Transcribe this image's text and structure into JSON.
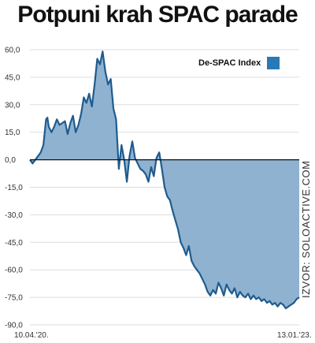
{
  "chart_data": {
    "type": "area",
    "title": "Potpuni krah SPAC parade",
    "xlabel": "",
    "ylabel": "",
    "ylim": [
      -90,
      60
    ],
    "yticks": [
      60,
      45,
      30,
      15,
      0,
      -15,
      -30,
      -45,
      -60,
      -75,
      -90
    ],
    "ytick_labels": [
      "60,0",
      "45,0",
      "30,0",
      "15,0",
      "0,0",
      "-15,0",
      "-30,0",
      "-45,0",
      "-60,0",
      "-75,0",
      "-90,0"
    ],
    "x_start_label": "10.04.'20.",
    "x_end_label": "13.01.'23.",
    "grid": "horizontal",
    "legend_position": "top-right",
    "source": "IZVOR: SOLOACTIVE.COM",
    "colors": {
      "line": "#1f5b8e",
      "fill": "#8fb2d0",
      "legend": "#2a79b6",
      "grid": "#dddddd"
    },
    "series": [
      {
        "name": "De-SPAC Index",
        "x": [
          0,
          0.01,
          0.02,
          0.03,
          0.04,
          0.05,
          0.06,
          0.065,
          0.07,
          0.08,
          0.09,
          0.1,
          0.11,
          0.12,
          0.13,
          0.14,
          0.15,
          0.16,
          0.17,
          0.18,
          0.19,
          0.2,
          0.21,
          0.22,
          0.23,
          0.24,
          0.25,
          0.26,
          0.27,
          0.28,
          0.29,
          0.3,
          0.31,
          0.32,
          0.33,
          0.34,
          0.35,
          0.36,
          0.37,
          0.38,
          0.39,
          0.4,
          0.41,
          0.42,
          0.43,
          0.44,
          0.45,
          0.46,
          0.47,
          0.48,
          0.49,
          0.5,
          0.51,
          0.52,
          0.53,
          0.54,
          0.55,
          0.56,
          0.57,
          0.58,
          0.59,
          0.6,
          0.61,
          0.62,
          0.63,
          0.64,
          0.65,
          0.66,
          0.67,
          0.68,
          0.69,
          0.7,
          0.71,
          0.72,
          0.73,
          0.74,
          0.75,
          0.76,
          0.77,
          0.78,
          0.79,
          0.8,
          0.81,
          0.82,
          0.83,
          0.84,
          0.85,
          0.86,
          0.87,
          0.88,
          0.89,
          0.9,
          0.91,
          0.92,
          0.93,
          0.94,
          0.95,
          0.96,
          0.97,
          0.98,
          0.99,
          1.0
        ],
        "values": [
          0,
          -2,
          0,
          2,
          4,
          8,
          22,
          23,
          18,
          15,
          18,
          22,
          19,
          20,
          21,
          14,
          20,
          24,
          15,
          19,
          25,
          34,
          31,
          36,
          29,
          41,
          55,
          52,
          59,
          48,
          41,
          44,
          28,
          22,
          -5,
          8,
          0,
          -12,
          2,
          10,
          1,
          -2,
          -5,
          -6,
          -8,
          -12,
          -4,
          -9,
          1,
          4,
          -5,
          -15,
          -20,
          -22,
          -28,
          -33,
          -38,
          -45,
          -48,
          -52,
          -47,
          -55,
          -58,
          -60,
          -62,
          -65,
          -68,
          -72,
          -74,
          -71,
          -73,
          -67,
          -70,
          -74,
          -68,
          -71,
          -73,
          -70,
          -75,
          -72,
          -74,
          -75,
          -73,
          -76,
          -74,
          -76,
          -75,
          -77,
          -76,
          -78,
          -77,
          -79,
          -78,
          -80,
          -78,
          -79,
          -81,
          -80,
          -79,
          -78,
          -76,
          -75
        ]
      }
    ]
  }
}
